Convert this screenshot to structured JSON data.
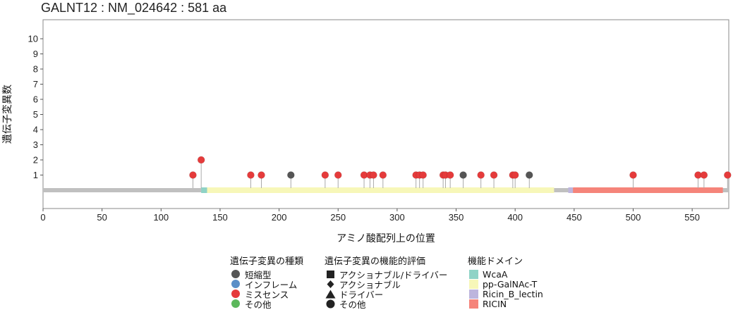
{
  "page_title": "GALNT12 : NM_024642 : 581 aa",
  "chart_data": {
    "type": "lollipop",
    "title": "GALNT12 : NM_024642 : 581 aa",
    "xlabel": "アミノ酸配列上の位置",
    "ylabel": "遺伝子変異数",
    "xlim": [
      0,
      581
    ],
    "ylim": [
      0,
      11
    ],
    "x_ticks": [
      0,
      50,
      100,
      150,
      200,
      250,
      300,
      350,
      400,
      450,
      500,
      550
    ],
    "y_ticks": [
      1,
      2,
      3,
      4,
      5,
      6,
      7,
      8,
      9,
      10
    ],
    "grid": false,
    "protein_length": 581,
    "backbone_color": "#c0c0c0",
    "mutations": [
      {
        "position": 127,
        "count": 1,
        "type": "missense"
      },
      {
        "position": 134,
        "count": 2,
        "type": "missense"
      },
      {
        "position": 176,
        "count": 1,
        "type": "missense"
      },
      {
        "position": 185,
        "count": 1,
        "type": "missense"
      },
      {
        "position": 210,
        "count": 1,
        "type": "truncating"
      },
      {
        "position": 239,
        "count": 1,
        "type": "missense"
      },
      {
        "position": 250,
        "count": 1,
        "type": "missense"
      },
      {
        "position": 272,
        "count": 1,
        "type": "missense"
      },
      {
        "position": 277,
        "count": 1,
        "type": "missense"
      },
      {
        "position": 280,
        "count": 1,
        "type": "missense"
      },
      {
        "position": 288,
        "count": 1,
        "type": "missense"
      },
      {
        "position": 316,
        "count": 1,
        "type": "missense"
      },
      {
        "position": 319,
        "count": 1,
        "type": "missense"
      },
      {
        "position": 322,
        "count": 1,
        "type": "missense"
      },
      {
        "position": 339,
        "count": 1,
        "type": "missense"
      },
      {
        "position": 341,
        "count": 1,
        "type": "missense"
      },
      {
        "position": 345,
        "count": 1,
        "type": "missense"
      },
      {
        "position": 356,
        "count": 1,
        "type": "truncating"
      },
      {
        "position": 371,
        "count": 1,
        "type": "missense"
      },
      {
        "position": 382,
        "count": 1,
        "type": "missense"
      },
      {
        "position": 398,
        "count": 1,
        "type": "missense"
      },
      {
        "position": 400,
        "count": 1,
        "type": "missense"
      },
      {
        "position": 412,
        "count": 1,
        "type": "truncating"
      },
      {
        "position": 500,
        "count": 1,
        "type": "missense"
      },
      {
        "position": 555,
        "count": 1,
        "type": "missense"
      },
      {
        "position": 560,
        "count": 1,
        "type": "missense"
      },
      {
        "position": 580,
        "count": 1,
        "type": "missense"
      }
    ],
    "domains": [
      {
        "name": "WcaA",
        "start": 134,
        "end": 139,
        "color": "#8fd3c6"
      },
      {
        "name": "pp-GalNAc-T",
        "start": 139,
        "end": 433,
        "color": "#f7f7b8"
      },
      {
        "name": "Ricin_B_lectin",
        "start": 445,
        "end": 449,
        "color": "#bdb5dd"
      },
      {
        "name": "RICIN",
        "start": 449,
        "end": 576,
        "color": "#f5847a"
      }
    ],
    "mutation_type_colors": {
      "truncating": "#555555",
      "inframe": "#5b8fc7",
      "missense": "#e53b3b",
      "other": "#5cb85c"
    }
  },
  "legend": {
    "mutation_type": {
      "title": "遺伝子変異の種類",
      "items": [
        {
          "label": "短縮型",
          "color": "#555555"
        },
        {
          "label": "インフレーム",
          "color": "#5b8fc7"
        },
        {
          "label": "ミスセンス",
          "color": "#e53b3b"
        },
        {
          "label": "その他",
          "color": "#5cb85c"
        }
      ]
    },
    "functional": {
      "title": "遺伝子変異の機能的評価",
      "items": [
        {
          "label": "アクショナブル/ドライバー",
          "shape": "square"
        },
        {
          "label": "アクショナブル",
          "shape": "diamond"
        },
        {
          "label": "ドライバー",
          "shape": "triangle"
        },
        {
          "label": "その他",
          "shape": "circle"
        }
      ]
    },
    "domain": {
      "title": "機能ドメイン",
      "items": [
        {
          "label": "WcaA",
          "color": "#8fd3c6"
        },
        {
          "label": "pp-GalNAc-T",
          "color": "#f7f7b8"
        },
        {
          "label": "Ricin_B_lectin",
          "color": "#bdb5dd"
        },
        {
          "label": "RICIN",
          "color": "#f5847a"
        }
      ]
    }
  }
}
